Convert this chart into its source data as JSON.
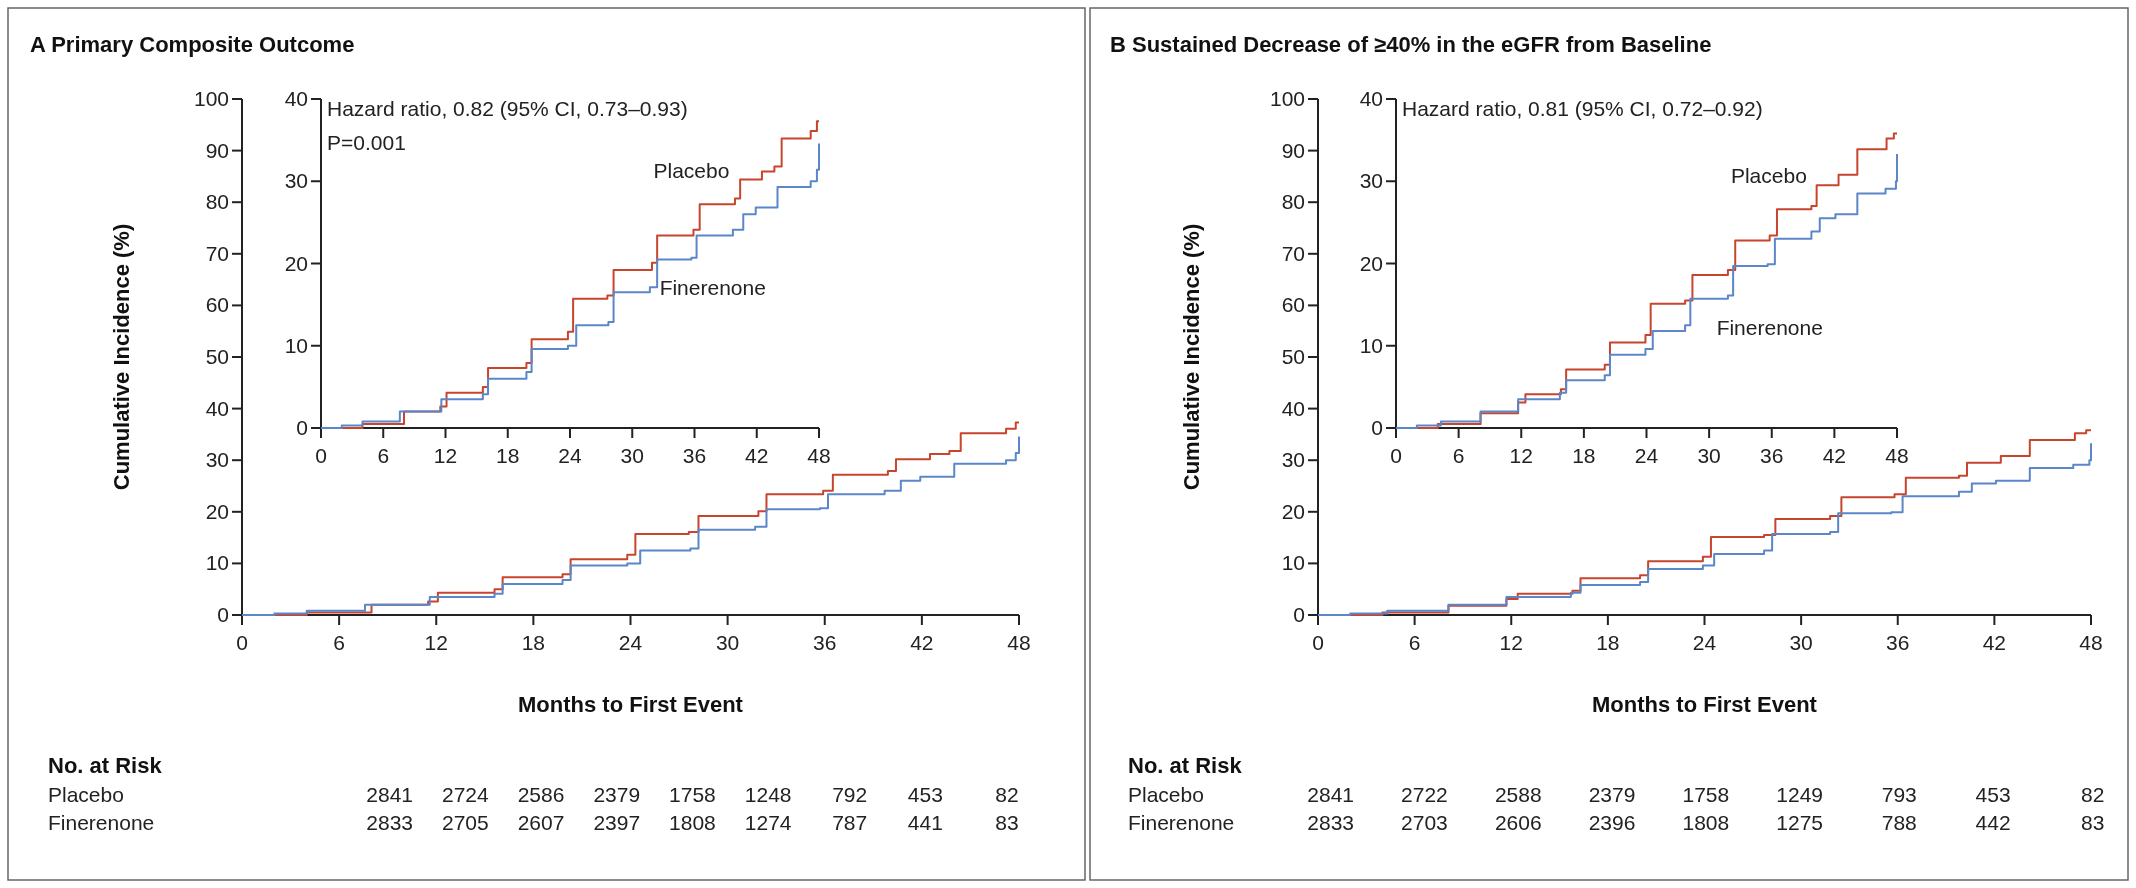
{
  "chart_data": [
    {
      "type": "step",
      "title": "A Primary Composite Outcome",
      "xlabel": "Months to First Event",
      "ylabel": "Cumulative Incidence (%)",
      "xlim": [
        0,
        48
      ],
      "xticks": [
        0,
        6,
        12,
        18,
        24,
        30,
        36,
        42,
        48
      ],
      "ylim": [
        0,
        100
      ],
      "yticks": [
        0,
        10,
        20,
        30,
        40,
        50,
        60,
        70,
        80,
        90,
        100
      ],
      "annotations": [
        "No. at Risk",
        "Placebo 2841 2724 2586 2379 1758 1248 792 453 82",
        "Finerenone 2833 2705 2607 2397 1808 1274 787 441 83"
      ],
      "series": [
        {
          "color": "#c8452d",
          "x": [
            0,
            4,
            8,
            11.5,
            12.1,
            15.6,
            16.1,
            19.8,
            20.3,
            23.8,
            24.3,
            27.6,
            28.2,
            31.9,
            32.4,
            35.9,
            36.5,
            39.9,
            40.4,
            42.5,
            43.7,
            44.4,
            47.2,
            47.8,
            48
          ],
          "values": [
            0,
            0.5,
            2,
            2.6,
            4.3,
            5,
            7.3,
            7.9,
            10.8,
            11.7,
            15.7,
            16.1,
            19.2,
            20.1,
            23.4,
            24.1,
            27.2,
            27.9,
            30.2,
            31.2,
            31.8,
            35.2,
            36.1,
            37.3,
            37.3
          ]
        },
        {
          "color": "#5b86c9",
          "x": [
            0,
            2,
            4,
            7.6,
            11.6,
            15.6,
            16.1,
            19.8,
            20.3,
            23.8,
            24.6,
            27.7,
            28.2,
            31.7,
            32.4,
            35.7,
            36.2,
            39.7,
            40.7,
            41.9,
            44,
            47.2,
            47.8,
            48
          ],
          "values": [
            0,
            0.3,
            0.8,
            2,
            3.5,
            4.1,
            6,
            6.8,
            9.6,
            10,
            12.5,
            12.9,
            16.5,
            17.1,
            20.5,
            20.7,
            23.4,
            24.1,
            26,
            26.8,
            29.3,
            30,
            31.4,
            34.6
          ]
        }
      ]
    },
    {
      "type": "step",
      "xlim": [
        0,
        48
      ],
      "xticks": [
        0,
        6,
        12,
        18,
        24,
        30,
        36,
        42,
        48
      ],
      "ylim": [
        0,
        40
      ],
      "yticks": [
        0,
        10,
        20,
        30,
        40
      ],
      "annotations": [
        "Hazard ratio, 0.82 (95% CI, 0.73–0.93)",
        "P=0.001"
      ],
      "series": [
        {
          "name": "Placebo",
          "color": "#c8452d",
          "x": [
            0,
            4,
            8,
            11.5,
            12.1,
            15.6,
            16.1,
            19.8,
            20.3,
            23.8,
            24.3,
            27.6,
            28.2,
            31.9,
            32.4,
            35.9,
            36.5,
            39.9,
            40.4,
            42.5,
            43.7,
            44.4,
            47.2,
            47.8,
            48
          ],
          "values": [
            0,
            0.5,
            2,
            2.6,
            4.3,
            5,
            7.3,
            7.9,
            10.8,
            11.7,
            15.7,
            16.1,
            19.2,
            20.1,
            23.4,
            24.1,
            27.2,
            27.9,
            30.2,
            31.2,
            31.8,
            35.2,
            36.1,
            37.3,
            37.3
          ]
        },
        {
          "name": "Finerenone",
          "color": "#5b86c9",
          "x": [
            0,
            2,
            4,
            7.6,
            11.6,
            15.6,
            16.1,
            19.8,
            20.3,
            23.8,
            24.6,
            27.7,
            28.2,
            31.7,
            32.4,
            35.7,
            36.2,
            39.7,
            40.7,
            41.9,
            44,
            47.2,
            47.8,
            48
          ],
          "values": [
            0,
            0.3,
            0.8,
            2,
            3.5,
            4.1,
            6,
            6.8,
            9.6,
            10,
            12.5,
            12.9,
            16.5,
            17.1,
            20.5,
            20.7,
            23.4,
            24.1,
            26,
            26.8,
            29.3,
            30,
            31.4,
            34.6
          ]
        }
      ]
    },
    {
      "type": "step",
      "title": "B Sustained Decrease of ≥40% in the eGFR from Baseline",
      "xlabel": "Months to First Event",
      "ylabel": "Cumulative Incidence (%)",
      "xlim": [
        0,
        48
      ],
      "xticks": [
        0,
        6,
        12,
        18,
        24,
        30,
        36,
        42,
        48
      ],
      "ylim": [
        0,
        100
      ],
      "yticks": [
        0,
        10,
        20,
        30,
        40,
        50,
        60,
        70,
        80,
        90,
        100
      ],
      "annotations": [
        "No. at Risk",
        "Placebo 2841 2722 2588 2379 1758 1249 793 453 82",
        "Finerenone 2833 2703 2606 2396 1808 1275 788 442 83"
      ],
      "series": [
        {
          "color": "#c8452d",
          "x": [
            0,
            4,
            8.1,
            11.7,
            12.4,
            15.8,
            16.3,
            20,
            20.5,
            23.9,
            24.4,
            27.7,
            28.4,
            31.8,
            32.5,
            35.8,
            36.5,
            39.8,
            40.3,
            42.4,
            44.2,
            47,
            47.7,
            48
          ],
          "values": [
            0,
            0.5,
            1.8,
            3.1,
            4.1,
            4.7,
            7.1,
            7.7,
            10.4,
            11.3,
            15.1,
            15.5,
            18.6,
            19.2,
            22.8,
            23.4,
            26.6,
            27,
            29.5,
            30.8,
            33.9,
            35.2,
            35.8,
            35.8
          ]
        },
        {
          "color": "#5b86c9",
          "x": [
            0,
            2,
            4.3,
            8.1,
            11.7,
            15.7,
            16.3,
            20,
            20.5,
            23.9,
            24.6,
            27.7,
            28.2,
            31.8,
            32.3,
            35.6,
            36.3,
            39.8,
            40.6,
            42.1,
            44.2,
            46.9,
            47.9,
            48
          ],
          "values": [
            0,
            0.3,
            0.8,
            2,
            3.5,
            4.3,
            5.8,
            6.4,
            8.9,
            9.6,
            11.8,
            12.5,
            15.7,
            16.1,
            19.7,
            19.9,
            23,
            23.9,
            25.5,
            26,
            28.5,
            29.1,
            30,
            33.3
          ]
        }
      ]
    },
    {
      "type": "step",
      "xlim": [
        0,
        48
      ],
      "xticks": [
        0,
        6,
        12,
        18,
        24,
        30,
        36,
        42,
        48
      ],
      "ylim": [
        0,
        40
      ],
      "yticks": [
        0,
        10,
        20,
        30,
        40
      ],
      "annotations": [
        "Hazard ratio, 0.81 (95% CI, 0.72–0.92)"
      ],
      "series": [
        {
          "name": "Placebo",
          "color": "#c8452d",
          "x": [
            0,
            4,
            8.1,
            11.7,
            12.4,
            15.8,
            16.3,
            20,
            20.5,
            23.9,
            24.4,
            27.7,
            28.4,
            31.8,
            32.5,
            35.8,
            36.5,
            39.8,
            40.3,
            42.4,
            44.2,
            47,
            47.7,
            48
          ],
          "values": [
            0,
            0.5,
            1.8,
            3.1,
            4.1,
            4.7,
            7.1,
            7.7,
            10.4,
            11.3,
            15.1,
            15.5,
            18.6,
            19.2,
            22.8,
            23.4,
            26.6,
            27,
            29.5,
            30.8,
            33.9,
            35.2,
            35.8,
            35.8
          ]
        },
        {
          "name": "Finerenone",
          "color": "#5b86c9",
          "x": [
            0,
            2,
            4.3,
            8.1,
            11.7,
            15.7,
            16.3,
            20,
            20.5,
            23.9,
            24.6,
            27.7,
            28.2,
            31.8,
            32.3,
            35.6,
            36.3,
            39.8,
            40.6,
            42.1,
            44.2,
            46.9,
            47.9,
            48
          ],
          "values": [
            0,
            0.3,
            0.8,
            2,
            3.5,
            4.3,
            5.8,
            6.4,
            8.9,
            9.6,
            11.8,
            12.5,
            15.7,
            16.1,
            19.7,
            19.9,
            23,
            23.9,
            25.5,
            26,
            28.5,
            29.1,
            30,
            33.3
          ]
        }
      ]
    }
  ]
}
